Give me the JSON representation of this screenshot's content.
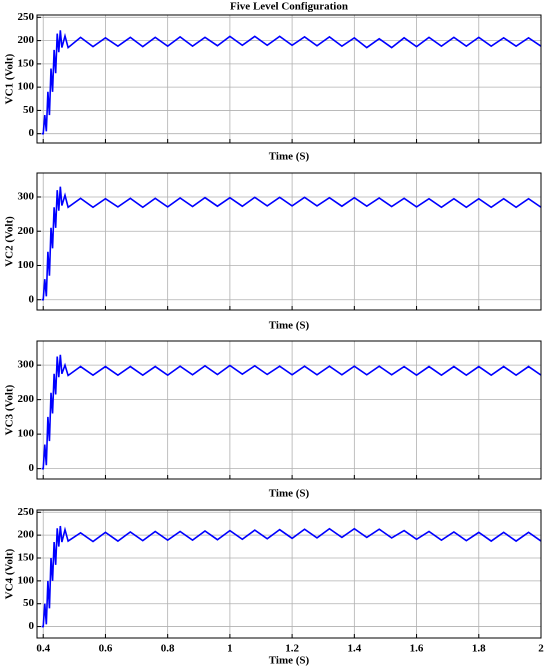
{
  "chart_data": [
    {
      "type": "line",
      "title": "Five Level Configuration",
      "xlabel": "Time (S)",
      "ylabel": "VC1 (Volt)",
      "x": [
        0.395,
        0.4,
        0.405,
        0.41,
        0.415,
        0.42,
        0.425,
        0.43,
        0.435,
        0.44,
        0.445,
        0.45,
        0.455,
        0.46,
        0.47,
        0.48,
        0.52,
        0.56,
        0.6,
        0.64,
        0.68,
        0.72,
        0.76,
        0.8,
        0.84,
        0.88,
        0.92,
        0.96,
        1.0,
        1.04,
        1.08,
        1.12,
        1.16,
        1.2,
        1.24,
        1.28,
        1.32,
        1.36,
        1.4,
        1.44,
        1.48,
        1.52,
        1.56,
        1.6,
        1.64,
        1.68,
        1.72,
        1.76,
        1.8,
        1.84,
        1.88,
        1.92,
        1.96,
        2.0
      ],
      "series": [
        {
          "color": "#0000ff",
          "values": [
            0,
            0,
            40,
            5,
            90,
            40,
            140,
            90,
            180,
            130,
            215,
            175,
            222,
            185,
            210,
            185,
            207,
            187,
            206,
            188,
            207,
            187,
            207,
            188,
            208,
            188,
            207,
            189,
            209,
            190,
            209,
            190,
            209,
            190,
            208,
            189,
            208,
            188,
            206,
            185,
            204,
            185,
            206,
            187,
            207,
            188,
            207,
            188,
            207,
            188,
            206,
            188,
            206,
            188
          ]
        }
      ],
      "xlim": [
        0.38,
        2.0
      ],
      "xticks": [
        0.4,
        0.6,
        0.8,
        1,
        1.2,
        1.4,
        1.6,
        1.8,
        2
      ],
      "xtick_labels": false,
      "ylim": [
        -20,
        255
      ],
      "yticks": [
        0,
        50,
        100,
        150,
        200,
        250
      ],
      "grid": true
    },
    {
      "type": "line",
      "xlabel": "Time (S)",
      "ylabel": "VC2 (Volt)",
      "x": [
        0.395,
        0.4,
        0.405,
        0.41,
        0.415,
        0.42,
        0.425,
        0.43,
        0.435,
        0.44,
        0.445,
        0.45,
        0.455,
        0.46,
        0.47,
        0.48,
        0.52,
        0.56,
        0.6,
        0.64,
        0.68,
        0.72,
        0.76,
        0.8,
        0.84,
        0.88,
        0.92,
        0.96,
        1.0,
        1.04,
        1.08,
        1.12,
        1.16,
        1.2,
        1.24,
        1.28,
        1.32,
        1.36,
        1.4,
        1.44,
        1.48,
        1.52,
        1.56,
        1.6,
        1.64,
        1.68,
        1.72,
        1.76,
        1.8,
        1.84,
        1.88,
        1.92,
        1.96,
        2.0
      ],
      "series": [
        {
          "color": "#0000ff",
          "values": [
            0,
            0,
            60,
            10,
            140,
            70,
            210,
            150,
            270,
            210,
            320,
            260,
            330,
            275,
            305,
            270,
            296,
            270,
            295,
            271,
            296,
            270,
            296,
            271,
            297,
            272,
            298,
            273,
            298,
            273,
            299,
            274,
            299,
            274,
            299,
            274,
            298,
            273,
            298,
            273,
            297,
            272,
            296,
            271,
            295,
            270,
            295,
            270,
            295,
            270,
            295,
            270,
            295,
            270
          ]
        }
      ],
      "xlim": [
        0.38,
        2.0
      ],
      "xticks": [
        0.4,
        0.6,
        0.8,
        1,
        1.2,
        1.4,
        1.6,
        1.8,
        2
      ],
      "xtick_labels": false,
      "ylim": [
        -30,
        370
      ],
      "yticks": [
        0,
        100,
        200,
        300
      ],
      "grid": true
    },
    {
      "type": "line",
      "xlabel": "Time (S)",
      "ylabel": "VC3 (Volt)",
      "x": [
        0.395,
        0.4,
        0.405,
        0.41,
        0.415,
        0.42,
        0.425,
        0.43,
        0.435,
        0.44,
        0.445,
        0.45,
        0.455,
        0.46,
        0.47,
        0.48,
        0.52,
        0.56,
        0.6,
        0.64,
        0.68,
        0.72,
        0.76,
        0.8,
        0.84,
        0.88,
        0.92,
        0.96,
        1.0,
        1.04,
        1.08,
        1.12,
        1.16,
        1.2,
        1.24,
        1.28,
        1.32,
        1.36,
        1.4,
        1.44,
        1.48,
        1.52,
        1.56,
        1.6,
        1.64,
        1.68,
        1.72,
        1.76,
        1.8,
        1.84,
        1.88,
        1.92,
        1.96,
        2.0
      ],
      "series": [
        {
          "color": "#0000ff",
          "values": [
            0,
            0,
            70,
            10,
            150,
            80,
            220,
            160,
            275,
            215,
            325,
            265,
            330,
            275,
            300,
            270,
            296,
            271,
            296,
            271,
            296,
            271,
            296,
            271,
            297,
            272,
            298,
            273,
            299,
            274,
            298,
            273,
            297,
            272,
            297,
            272,
            297,
            272,
            297,
            272,
            297,
            272,
            296,
            271,
            296,
            271,
            296,
            271,
            296,
            271,
            296,
            271,
            296,
            271
          ]
        }
      ],
      "xlim": [
        0.38,
        2.0
      ],
      "xticks": [
        0.4,
        0.6,
        0.8,
        1,
        1.2,
        1.4,
        1.6,
        1.8,
        2
      ],
      "xtick_labels": false,
      "ylim": [
        -30,
        370
      ],
      "yticks": [
        0,
        100,
        200,
        300
      ],
      "grid": true
    },
    {
      "type": "line",
      "xlabel": "Time (S)",
      "ylabel": "VC4 (Volt)",
      "x": [
        0.395,
        0.4,
        0.405,
        0.41,
        0.415,
        0.42,
        0.425,
        0.43,
        0.435,
        0.44,
        0.445,
        0.45,
        0.455,
        0.46,
        0.47,
        0.48,
        0.52,
        0.56,
        0.6,
        0.64,
        0.68,
        0.72,
        0.76,
        0.8,
        0.84,
        0.88,
        0.92,
        0.96,
        1.0,
        1.04,
        1.08,
        1.12,
        1.16,
        1.2,
        1.24,
        1.28,
        1.32,
        1.36,
        1.4,
        1.44,
        1.48,
        1.52,
        1.56,
        1.6,
        1.64,
        1.68,
        1.72,
        1.76,
        1.8,
        1.84,
        1.88,
        1.92,
        1.96,
        2.0
      ],
      "series": [
        {
          "color": "#0000ff",
          "values": [
            0,
            0,
            50,
            5,
            100,
            40,
            150,
            100,
            185,
            135,
            215,
            175,
            220,
            185,
            212,
            187,
            205,
            186,
            206,
            187,
            207,
            188,
            208,
            189,
            208,
            189,
            209,
            190,
            210,
            191,
            211,
            192,
            212,
            193,
            213,
            194,
            214,
            195,
            214,
            195,
            213,
            194,
            210,
            191,
            208,
            189,
            207,
            188,
            206,
            187,
            206,
            187,
            206,
            187
          ]
        }
      ],
      "xlim": [
        0.38,
        2.0
      ],
      "xticks": [
        0.4,
        0.6,
        0.8,
        1,
        1.2,
        1.4,
        1.6,
        1.8,
        2
      ],
      "xtick_labels": true,
      "ylim": [
        -25,
        255
      ],
      "yticks": [
        0,
        50,
        100,
        150,
        200,
        250
      ],
      "grid": true
    }
  ]
}
